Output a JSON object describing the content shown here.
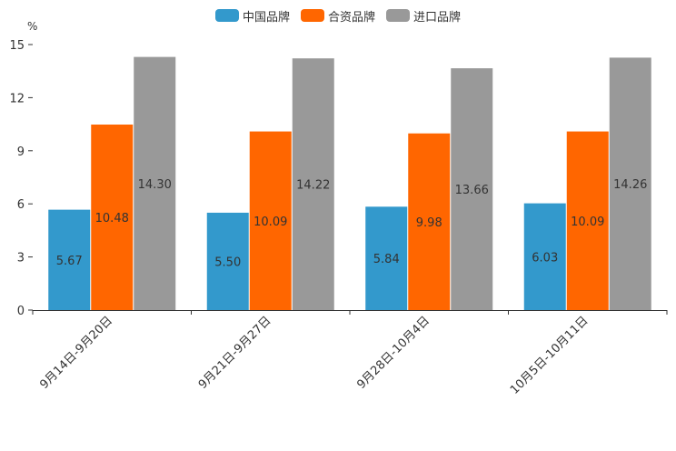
{
  "chart_data": {
    "type": "bar",
    "unit_label": "%",
    "categories": [
      "9月14日-9月20日",
      "9月21日-9月27日",
      "9月28日-10月4日",
      "10月5日-10月11日"
    ],
    "series": [
      {
        "name": "中国品牌",
        "color": "#3399cc",
        "values": [
          5.67,
          5.5,
          5.84,
          6.03
        ],
        "labels": [
          "5.67",
          "5.50",
          "5.84",
          "6.03"
        ]
      },
      {
        "name": "合资品牌",
        "color": "#ff6600",
        "values": [
          10.48,
          10.09,
          9.98,
          10.09
        ],
        "labels": [
          "10.48",
          "10.09",
          "9.98",
          "10.09"
        ]
      },
      {
        "name": "进口品牌",
        "color": "#999999",
        "values": [
          14.3,
          14.22,
          13.66,
          14.26
        ],
        "labels": [
          "14.30",
          "14.22",
          "13.66",
          "14.26"
        ]
      }
    ],
    "ylim": [
      0,
      15
    ],
    "yticks": [
      0,
      3,
      6,
      9,
      12,
      15
    ],
    "legend_position": "top-center"
  }
}
